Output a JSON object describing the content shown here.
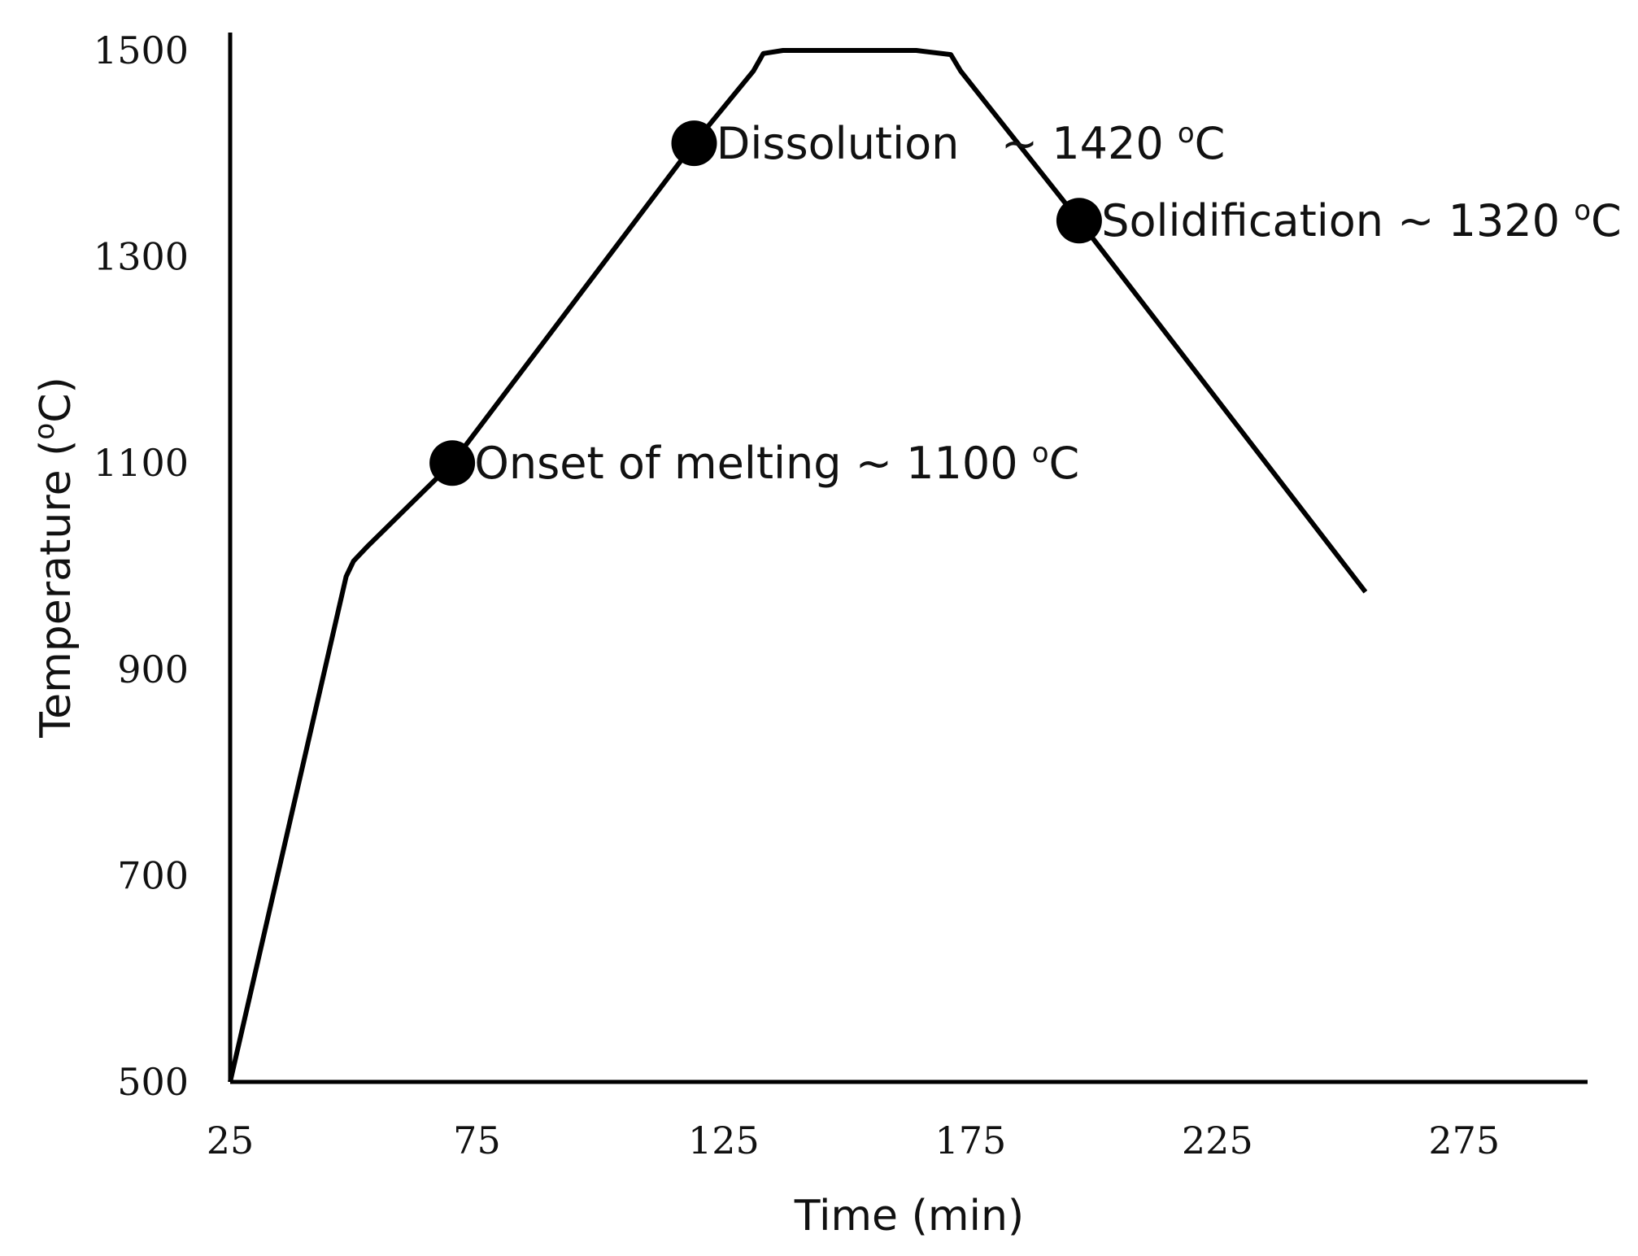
{
  "chart_data": {
    "type": "line",
    "title": "",
    "xlabel": "Time (min)",
    "ylabel_parts": {
      "prefix": "Temperature  (",
      "sup": "o",
      "suffix": "C)"
    },
    "xlim": [
      25,
      300
    ],
    "ylim": [
      500,
      1500
    ],
    "x_ticks": [
      25,
      75,
      125,
      175,
      225,
      275
    ],
    "y_ticks": [
      500,
      700,
      900,
      1100,
      1300,
      1500
    ],
    "grid": false,
    "legend": "none",
    "series": [
      {
        "name": "Temperature profile",
        "color": "#000000",
        "points": [
          {
            "x": 25,
            "y": 500
          },
          {
            "x": 48.5,
            "y": 990
          },
          {
            "x": 50,
            "y": 1005
          },
          {
            "x": 53,
            "y": 1020
          },
          {
            "x": 70,
            "y": 1100
          },
          {
            "x": 119,
            "y": 1410
          },
          {
            "x": 131,
            "y": 1480
          },
          {
            "x": 133,
            "y": 1497
          },
          {
            "x": 137,
            "y": 1500
          },
          {
            "x": 164,
            "y": 1500
          },
          {
            "x": 171,
            "y": 1496
          },
          {
            "x": 173,
            "y": 1480
          },
          {
            "x": 197,
            "y": 1335
          },
          {
            "x": 255,
            "y": 975
          }
        ]
      }
    ],
    "markers": [
      {
        "name": "onset",
        "x": 70,
        "y": 1100,
        "color": "#000000"
      },
      {
        "name": "dissolution",
        "x": 119,
        "y": 1410,
        "color": "#000000"
      },
      {
        "name": "solidification",
        "x": 197,
        "y": 1335,
        "color": "#000000"
      }
    ],
    "annotations": [
      {
        "name": "onset",
        "main": "Onset of melting ~ 1100 ",
        "sup": "o",
        "unit": "C",
        "anchor_x": 74.5,
        "anchor_y": 1100
      },
      {
        "name": "dissolution",
        "main": "Dissolution   ~ 1420 ",
        "sup": "o",
        "unit": "C",
        "anchor_x": 123.5,
        "anchor_y": 1410
      },
      {
        "name": "solidification",
        "main": "Solidification ~ 1320 ",
        "sup": "o",
        "unit": "C",
        "anchor_x": 201.5,
        "anchor_y": 1335
      }
    ]
  }
}
